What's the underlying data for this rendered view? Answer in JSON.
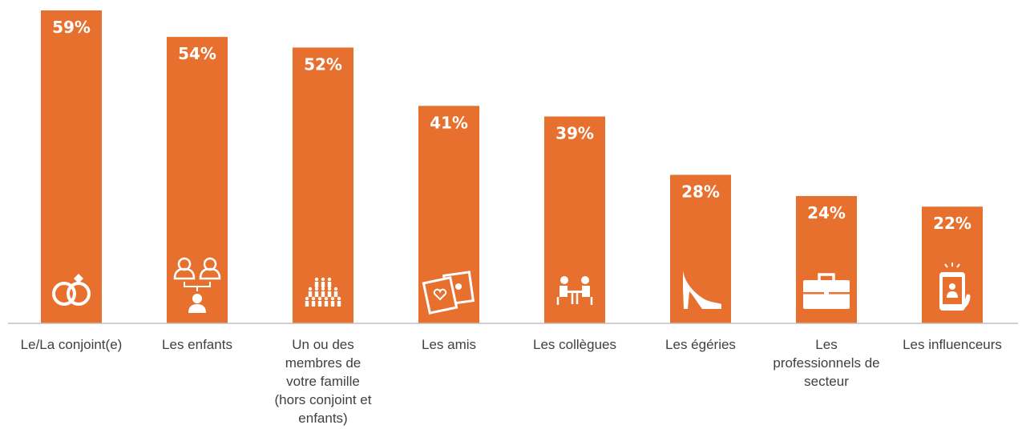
{
  "chart_data": {
    "type": "bar",
    "categories": [
      "Le/La conjoint(e)",
      "Les enfants",
      "Un ou des\nmembres de\nvotre famille\n(hors conjoint et\nenfants)",
      "Les amis",
      "Les collègues",
      "Les égéries",
      "Les\nprofessionnels de\nsecteur",
      "Les influenceurs"
    ],
    "values": [
      59,
      54,
      52,
      41,
      39,
      28,
      24,
      22
    ],
    "value_labels": [
      "59%",
      "54%",
      "52%",
      "41%",
      "39%",
      "28%",
      "24%",
      "22%"
    ],
    "title": "",
    "xlabel": "",
    "ylabel": "",
    "ylim": [
      0,
      60
    ],
    "grid": false,
    "legend": "none",
    "icons": [
      "rings-icon",
      "parent-child-icon",
      "family-icon",
      "photos-icon",
      "meeting-icon",
      "high-heel-icon",
      "briefcase-icon",
      "smartphone-icon"
    ]
  },
  "colors": {
    "bar": "#E8702F",
    "axis": "#BFBFBF",
    "text": "#404040"
  }
}
